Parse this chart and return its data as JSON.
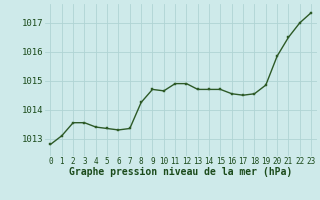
{
  "x": [
    0,
    1,
    2,
    3,
    4,
    5,
    6,
    7,
    8,
    9,
    10,
    11,
    12,
    13,
    14,
    15,
    16,
    17,
    18,
    19,
    20,
    21,
    22,
    23
  ],
  "y": [
    1012.8,
    1013.1,
    1013.55,
    1013.55,
    1013.4,
    1013.35,
    1013.3,
    1013.35,
    1014.25,
    1014.7,
    1014.65,
    1014.9,
    1014.9,
    1014.7,
    1014.7,
    1014.7,
    1014.55,
    1014.5,
    1014.55,
    1014.85,
    1015.85,
    1016.5,
    1017.0,
    1017.35
  ],
  "line_color": "#2d5a27",
  "marker": "s",
  "markersize": 2.0,
  "linewidth": 1.0,
  "bg_color": "#ceeaea",
  "grid_color": "#b0d4d4",
  "xlabel": "Graphe pression niveau de la mer (hPa)",
  "xlabel_fontsize": 7,
  "yticks": [
    1013,
    1014,
    1015,
    1016,
    1017
  ],
  "xticks": [
    0,
    1,
    2,
    3,
    4,
    5,
    6,
    7,
    8,
    9,
    10,
    11,
    12,
    13,
    14,
    15,
    16,
    17,
    18,
    19,
    20,
    21,
    22,
    23
  ],
  "ylim": [
    1012.4,
    1017.65
  ],
  "xlim": [
    -0.5,
    23.5
  ],
  "ytick_fontsize": 6.5,
  "xtick_fontsize": 5.5,
  "tick_color": "#1a4a1a",
  "label_color": "#1a4a1a"
}
